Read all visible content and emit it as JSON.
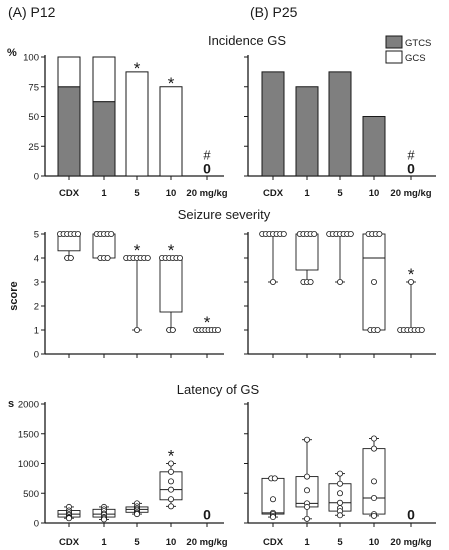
{
  "panel_labels": [
    "(A) P12",
    "(B) P25"
  ],
  "chart_data": [
    {
      "type": "bar",
      "title": "Incidence GS",
      "ylabel": "%",
      "ylim": [
        0,
        100
      ],
      "yticks": [
        "0",
        "25",
        "50",
        "75",
        "100"
      ],
      "legend": {
        "placement": "top-right",
        "entries": [
          {
            "label": "GTCS",
            "color": "#7f7f7f"
          },
          {
            "label": "GCS",
            "color": "#ffffff"
          }
        ]
      },
      "categories": [
        "CDX",
        "1",
        "5",
        "10",
        "20 mg/kg"
      ],
      "panels": [
        {
          "label": "(A) P12",
          "series": [
            {
              "name": "GTCS",
              "values": [
                75,
                62.5,
                0,
                0,
                0
              ]
            },
            {
              "name": "GCS",
              "values": [
                25,
                37.5,
                87.5,
                75,
                0
              ]
            }
          ],
          "annotations": [
            "",
            "",
            "*",
            "*",
            "#"
          ],
          "zero_labels": [
            "",
            "",
            "",
            "",
            "0"
          ]
        },
        {
          "label": "(B) P25",
          "series": [
            {
              "name": "GTCS",
              "values": [
                87.5,
                75,
                87.5,
                50,
                0
              ]
            },
            {
              "name": "GCS",
              "values": [
                0,
                0,
                0,
                0,
                0
              ]
            }
          ],
          "annotations": [
            "",
            "",
            "",
            "",
            "#"
          ],
          "zero_labels": [
            "",
            "",
            "",
            "",
            "0"
          ]
        }
      ]
    },
    {
      "type": "box",
      "title": "Seizure severity",
      "ylabel": "score",
      "ylim": [
        0,
        5
      ],
      "yticks": [
        "0",
        "1",
        "2",
        "3",
        "4",
        "5"
      ],
      "categories": [
        "CDX",
        "1",
        "5",
        "10",
        "20 mg/kg"
      ],
      "panels": [
        {
          "label": "(A) P12",
          "groups": [
            {
              "min": 4,
              "q1": 4.3,
              "median": 5,
              "q3": 5,
              "max": 5,
              "points": [
                5,
                5,
                5,
                5,
                5,
                4,
                4,
                5
              ]
            },
            {
              "min": 4,
              "q1": 4,
              "median": 5,
              "q3": 5,
              "max": 5,
              "points": [
                5,
                5,
                5,
                5,
                5,
                4,
                4,
                4
              ]
            },
            {
              "min": 1,
              "q1": 4,
              "median": 4,
              "q3": 4,
              "max": 4,
              "points": [
                4,
                4,
                4,
                4,
                4,
                4,
                4,
                1
              ]
            },
            {
              "min": 1,
              "q1": 1.75,
              "median": 4,
              "q3": 4,
              "max": 4,
              "points": [
                4,
                4,
                4,
                4,
                4,
                4,
                1,
                1
              ]
            },
            {
              "min": 1,
              "q1": 1,
              "median": 1,
              "q3": 1,
              "max": 1,
              "points": [
                1,
                1,
                1,
                1,
                1,
                1,
                1,
                1
              ]
            }
          ],
          "annotations": [
            "",
            "",
            "*",
            "*",
            "*"
          ]
        },
        {
          "label": "(B) P25",
          "groups": [
            {
              "min": 3,
              "q1": 5,
              "median": 5,
              "q3": 5,
              "max": 5,
              "points": [
                5,
                5,
                5,
                5,
                5,
                5,
                5,
                3
              ]
            },
            {
              "min": 3,
              "q1": 3.5,
              "median": 5,
              "q3": 5,
              "max": 5,
              "points": [
                5,
                5,
                5,
                5,
                5,
                3,
                3,
                3
              ]
            },
            {
              "min": 3,
              "q1": 5,
              "median": 5,
              "q3": 5,
              "max": 5,
              "points": [
                5,
                5,
                5,
                5,
                5,
                5,
                5,
                3
              ]
            },
            {
              "min": 1,
              "q1": 1,
              "median": 4,
              "q3": 5,
              "max": 5,
              "points": [
                5,
                5,
                5,
                5,
                3,
                1,
                1,
                1
              ]
            },
            {
              "min": 1,
              "q1": 1,
              "median": 1,
              "q3": 1,
              "max": 3,
              "points": [
                1,
                1,
                1,
                1,
                1,
                1,
                1,
                3
              ]
            }
          ],
          "annotations": [
            "",
            "",
            "",
            "",
            "*"
          ]
        }
      ]
    },
    {
      "type": "box",
      "title": "Latency of GS",
      "ylabel": "s",
      "ylim": [
        0,
        2000
      ],
      "yticks": [
        "0",
        "500",
        "1000",
        "1500",
        "2000"
      ],
      "categories": [
        "CDX",
        "1",
        "5",
        "10",
        "20 mg/kg"
      ],
      "panels": [
        {
          "label": "(A) P12",
          "groups": [
            {
              "min": 80,
              "q1": 100,
              "median": 150,
              "q3": 210,
              "max": 270,
              "points": [
                270,
                210,
                180,
                150,
                130,
                100,
                90,
                80
              ]
            },
            {
              "min": 60,
              "q1": 100,
              "median": 150,
              "q3": 230,
              "max": 270,
              "points": [
                270,
                230,
                200,
                160,
                140,
                100,
                80,
                60
              ]
            },
            {
              "min": 150,
              "q1": 180,
              "median": 230,
              "q3": 270,
              "max": 330,
              "points": [
                330,
                280,
                250,
                230,
                210,
                180,
                160,
                150
              ]
            },
            {
              "min": 280,
              "q1": 390,
              "median": 560,
              "q3": 860,
              "max": 1000,
              "points": [
                1000,
                860,
                700,
                560,
                400,
                280
              ]
            },
            null
          ],
          "annotations": [
            "",
            "",
            "",
            "*",
            ""
          ],
          "zero_labels": [
            "",
            "",
            "",
            "",
            "0"
          ]
        },
        {
          "label": "(B) P25",
          "groups": [
            {
              "min": 100,
              "q1": 150,
              "median": 170,
              "q3": 750,
              "max": 750,
              "points": [
                750,
                750,
                400,
                170,
                150,
                120,
                100
              ]
            },
            {
              "min": 70,
              "q1": 270,
              "median": 330,
              "q3": 780,
              "max": 1400,
              "points": [
                1400,
                780,
                550,
                330,
                270,
                70
              ]
            },
            {
              "min": 130,
              "q1": 200,
              "median": 340,
              "q3": 660,
              "max": 830,
              "points": [
                830,
                660,
                500,
                340,
                250,
                200,
                130
              ]
            },
            {
              "min": 120,
              "q1": 150,
              "median": 420,
              "q3": 1250,
              "max": 1420,
              "points": [
                1420,
                1250,
                700,
                420,
                150,
                120
              ]
            },
            null
          ],
          "annotations": [
            "",
            "",
            "",
            "",
            ""
          ],
          "zero_labels": [
            "",
            "",
            "",
            "",
            "0"
          ]
        }
      ]
    }
  ]
}
